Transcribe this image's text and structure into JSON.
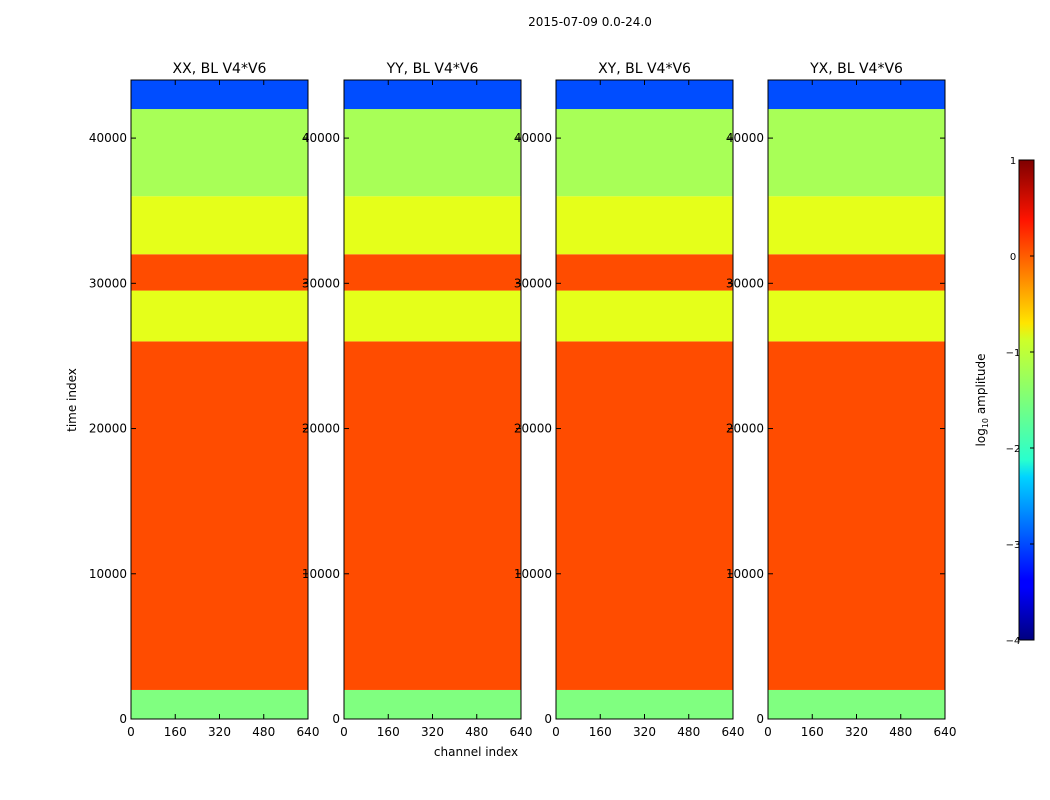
{
  "suptitle": "2015-07-09 0.0-24.0",
  "xlabel": "channel index",
  "ylabel": "time index",
  "xticks": [
    0,
    160,
    320,
    480,
    640
  ],
  "yticks": [
    0,
    10000,
    20000,
    30000,
    40000
  ],
  "colorbar": {
    "label": "log10 amplitude",
    "label_main": "log",
    "label_sub": "10",
    "label_rest": " amplitude",
    "min": -4,
    "max": 1,
    "ticks": [
      1,
      0,
      -1,
      -2,
      -3,
      -4
    ],
    "tick_labels": [
      "1",
      "0",
      "−1",
      "−2",
      "−3",
      "−4"
    ]
  },
  "chart_data": [
    {
      "type": "heatmap",
      "title": "XX, BL V4*V6",
      "xlim": [
        0,
        640
      ],
      "ylim": [
        0,
        44000
      ],
      "bands": [
        {
          "from": 0,
          "to": 2000,
          "log_amplitude": -1.5
        },
        {
          "from": 2000,
          "to": 26000,
          "log_amplitude": 0.0
        },
        {
          "from": 26000,
          "to": 29500,
          "log_amplitude": -1.0
        },
        {
          "from": 29500,
          "to": 32000,
          "log_amplitude": 0.0
        },
        {
          "from": 32000,
          "to": 36000,
          "log_amplitude": -1.0
        },
        {
          "from": 36000,
          "to": 42000,
          "log_amplitude": -1.3
        },
        {
          "from": 42000,
          "to": 44000,
          "log_amplitude": -3.0
        }
      ]
    },
    {
      "type": "heatmap",
      "title": "YY, BL V4*V6",
      "xlim": [
        0,
        640
      ],
      "ylim": [
        0,
        44000
      ],
      "bands": [
        {
          "from": 0,
          "to": 2000,
          "log_amplitude": -1.5
        },
        {
          "from": 2000,
          "to": 26000,
          "log_amplitude": 0.0
        },
        {
          "from": 26000,
          "to": 29500,
          "log_amplitude": -1.0
        },
        {
          "from": 29500,
          "to": 32000,
          "log_amplitude": 0.0
        },
        {
          "from": 32000,
          "to": 36000,
          "log_amplitude": -1.0
        },
        {
          "from": 36000,
          "to": 42000,
          "log_amplitude": -1.3
        },
        {
          "from": 42000,
          "to": 44000,
          "log_amplitude": -3.0
        }
      ]
    },
    {
      "type": "heatmap",
      "title": "XY, BL V4*V6",
      "xlim": [
        0,
        640
      ],
      "ylim": [
        0,
        44000
      ],
      "bands": [
        {
          "from": 0,
          "to": 2000,
          "log_amplitude": -1.5
        },
        {
          "from": 2000,
          "to": 26000,
          "log_amplitude": 0.0
        },
        {
          "from": 26000,
          "to": 29500,
          "log_amplitude": -1.0
        },
        {
          "from": 29500,
          "to": 32000,
          "log_amplitude": 0.0
        },
        {
          "from": 32000,
          "to": 36000,
          "log_amplitude": -1.0
        },
        {
          "from": 36000,
          "to": 42000,
          "log_amplitude": -1.3
        },
        {
          "from": 42000,
          "to": 44000,
          "log_amplitude": -3.0
        }
      ]
    },
    {
      "type": "heatmap",
      "title": "YX, BL V4*V6",
      "xlim": [
        0,
        640
      ],
      "ylim": [
        0,
        44000
      ],
      "bands": [
        {
          "from": 0,
          "to": 2000,
          "log_amplitude": -1.5
        },
        {
          "from": 2000,
          "to": 26000,
          "log_amplitude": 0.0
        },
        {
          "from": 26000,
          "to": 29500,
          "log_amplitude": -1.0
        },
        {
          "from": 29500,
          "to": 32000,
          "log_amplitude": 0.0
        },
        {
          "from": 32000,
          "to": 36000,
          "log_amplitude": -1.0
        },
        {
          "from": 36000,
          "to": 42000,
          "log_amplitude": -1.3
        },
        {
          "from": 42000,
          "to": 44000,
          "log_amplitude": -3.0
        }
      ]
    }
  ]
}
